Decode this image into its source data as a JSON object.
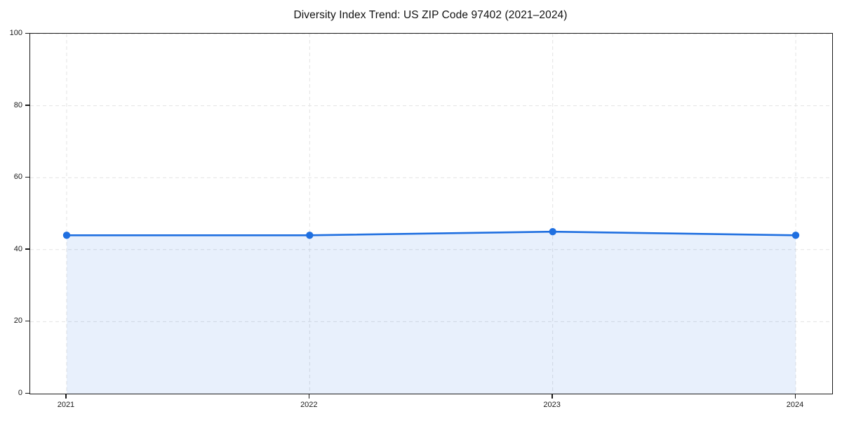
{
  "chart_data": {
    "type": "area",
    "title": "Diversity Index Trend: US ZIP Code 97402 (2021–2024)",
    "x": [
      2021,
      2022,
      2023,
      2024
    ],
    "x_tick_labels": [
      "2021",
      "2022",
      "2023",
      "2024"
    ],
    "series": [
      {
        "name": "Diversity Index",
        "values": [
          44,
          44,
          45,
          44
        ]
      }
    ],
    "xlabel": "",
    "ylabel": "",
    "ylim": [
      0,
      100
    ],
    "y_ticks": [
      0,
      20,
      40,
      60,
      80,
      100
    ],
    "grid": "dashed",
    "legend_position": "none",
    "colors": {
      "line": "#1f6fe0",
      "marker": "#1f6fe0",
      "fill": "#1f6fe0",
      "fill_opacity": 0.1,
      "grid": "#e3e3e3",
      "spine": "#1a1a1a",
      "text": "#1a1a1a",
      "background": "#ffffff"
    }
  }
}
